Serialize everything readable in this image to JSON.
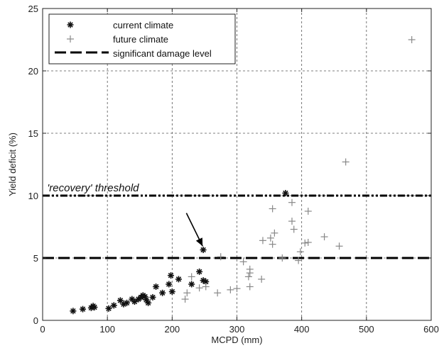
{
  "chart_data": {
    "type": "scatter",
    "xlabel": "MCPD (mm)",
    "ylabel": "Yield deficit (%)",
    "xlim": [
      0,
      600
    ],
    "ylim": [
      0,
      25
    ],
    "xticks": [
      0,
      100,
      200,
      300,
      400,
      500,
      600
    ],
    "yticks": [
      0,
      5,
      10,
      15,
      20,
      25
    ],
    "grid": true,
    "legend_position": "top-left",
    "series": [
      {
        "name": "current climate",
        "marker": "asterisk",
        "color": "#111111",
        "points": [
          [
            47,
            0.75
          ],
          [
            62,
            0.9
          ],
          [
            75,
            1.0
          ],
          [
            80,
            1.05
          ],
          [
            78,
            1.15
          ],
          [
            102,
            0.95
          ],
          [
            110,
            1.2
          ],
          [
            120,
            1.6
          ],
          [
            125,
            1.3
          ],
          [
            130,
            1.4
          ],
          [
            138,
            1.7
          ],
          [
            142,
            1.5
          ],
          [
            148,
            1.7
          ],
          [
            152,
            1.85
          ],
          [
            155,
            2.0
          ],
          [
            158,
            1.9
          ],
          [
            160,
            1.65
          ],
          [
            163,
            1.4
          ],
          [
            170,
            1.85
          ],
          [
            175,
            2.7
          ],
          [
            185,
            2.2
          ],
          [
            195,
            2.9
          ],
          [
            198,
            3.6
          ],
          [
            200,
            2.3
          ],
          [
            210,
            3.3
          ],
          [
            230,
            2.9
          ],
          [
            242,
            3.9
          ],
          [
            248,
            3.2
          ],
          [
            252,
            3.1
          ],
          [
            248,
            5.65
          ],
          [
            375,
            10.2
          ]
        ]
      },
      {
        "name": "future climate",
        "marker": "plus",
        "color": "#888888",
        "points": [
          [
            220,
            1.7
          ],
          [
            223,
            2.2
          ],
          [
            230,
            3.5
          ],
          [
            242,
            2.6
          ],
          [
            252,
            2.7
          ],
          [
            270,
            2.2
          ],
          [
            275,
            5.1
          ],
          [
            290,
            2.45
          ],
          [
            300,
            2.55
          ],
          [
            310,
            4.7
          ],
          [
            318,
            3.5
          ],
          [
            320,
            4.1
          ],
          [
            320,
            3.8
          ],
          [
            320,
            2.7
          ],
          [
            338,
            3.3
          ],
          [
            340,
            6.4
          ],
          [
            352,
            6.6
          ],
          [
            355,
            6.1
          ],
          [
            355,
            8.95
          ],
          [
            358,
            7.0
          ],
          [
            370,
            5.0
          ],
          [
            385,
            9.45
          ],
          [
            385,
            7.95
          ],
          [
            388,
            7.3
          ],
          [
            395,
            4.8
          ],
          [
            398,
            5.5
          ],
          [
            405,
            6.2
          ],
          [
            410,
            6.25
          ],
          [
            410,
            8.75
          ],
          [
            435,
            6.7
          ],
          [
            458,
            5.95
          ],
          [
            468,
            12.7
          ],
          [
            570,
            22.5
          ]
        ]
      }
    ],
    "reference_lines": [
      {
        "name": "significant damage level",
        "y": 5,
        "style": "long-dash"
      },
      {
        "name": "'recovery' threshold",
        "y": 10,
        "style": "dash-dot"
      }
    ],
    "annotations": [
      {
        "text": "'recovery' threshold"
      }
    ],
    "arrow": {
      "from": [
        222,
        8.6
      ],
      "to": [
        247,
        5.95
      ]
    }
  }
}
